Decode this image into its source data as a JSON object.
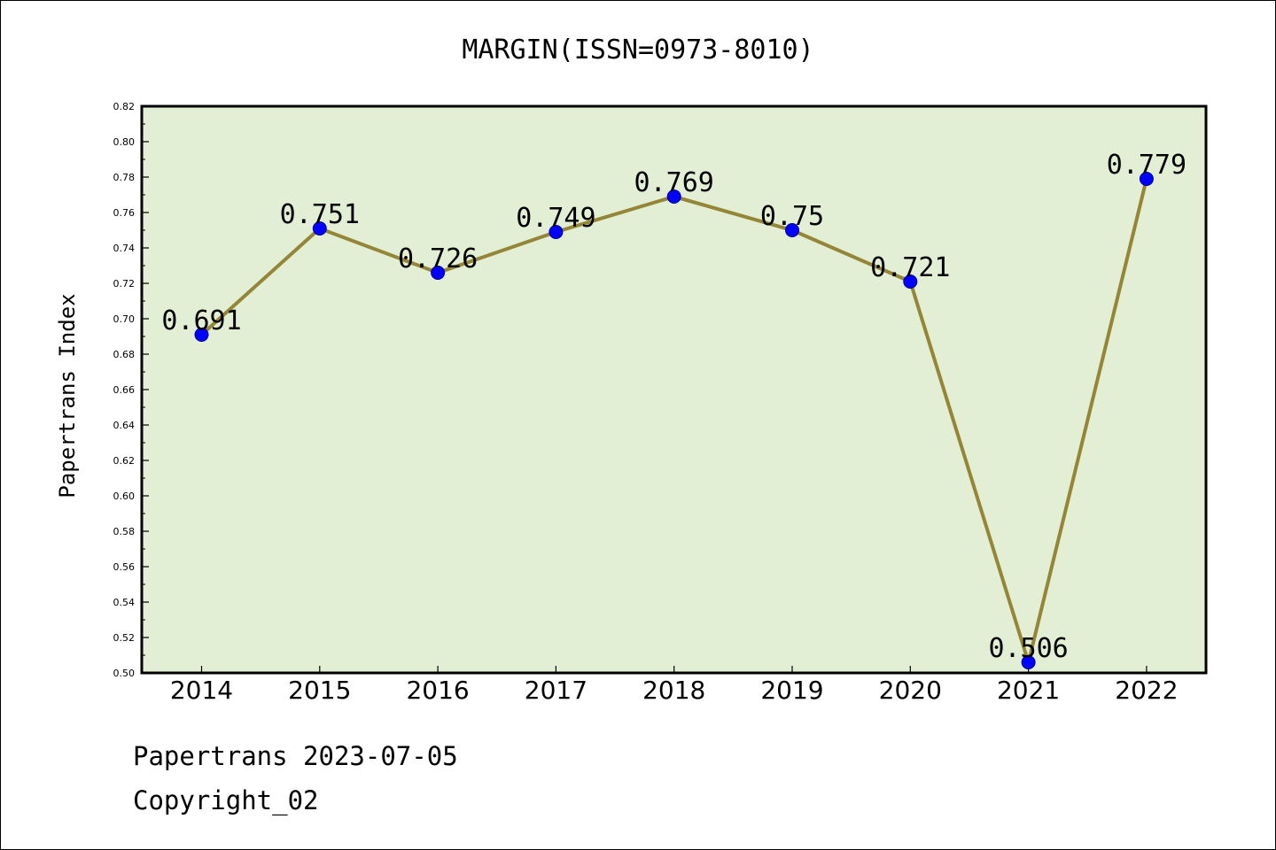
{
  "chart_data": {
    "type": "line",
    "title": "MARGIN(ISSN=0973-8010)",
    "xlabel": "",
    "ylabel": "Papertrans Index",
    "categories": [
      "2014",
      "2015",
      "2016",
      "2017",
      "2018",
      "2019",
      "2020",
      "2021",
      "2022"
    ],
    "series": [
      {
        "values": [
          0.691,
          0.751,
          0.726,
          0.749,
          0.769,
          0.75,
          0.721,
          0.506,
          0.779
        ],
        "labels": [
          "0.691",
          "0.751",
          "0.726",
          "0.749",
          "0.769",
          "0.75",
          "0.721",
          "0.506",
          "0.779"
        ]
      }
    ],
    "ylim": [
      0.5,
      0.82
    ],
    "yticks": [
      "0.50",
      "0.52",
      "0.54",
      "0.56",
      "0.58",
      "0.60",
      "0.62",
      "0.64",
      "0.66",
      "0.68",
      "0.70",
      "0.72",
      "0.74",
      "0.76",
      "0.78",
      "0.80",
      "0.82"
    ],
    "grid": false,
    "legend": "none",
    "colors": {
      "plot_background": "#e2efd4",
      "line": "#958537",
      "marker": "#0000ff",
      "axes": "#000000"
    }
  },
  "footer": {
    "line1": "Papertrans 2023-07-05",
    "line2": "Copyright_02"
  }
}
